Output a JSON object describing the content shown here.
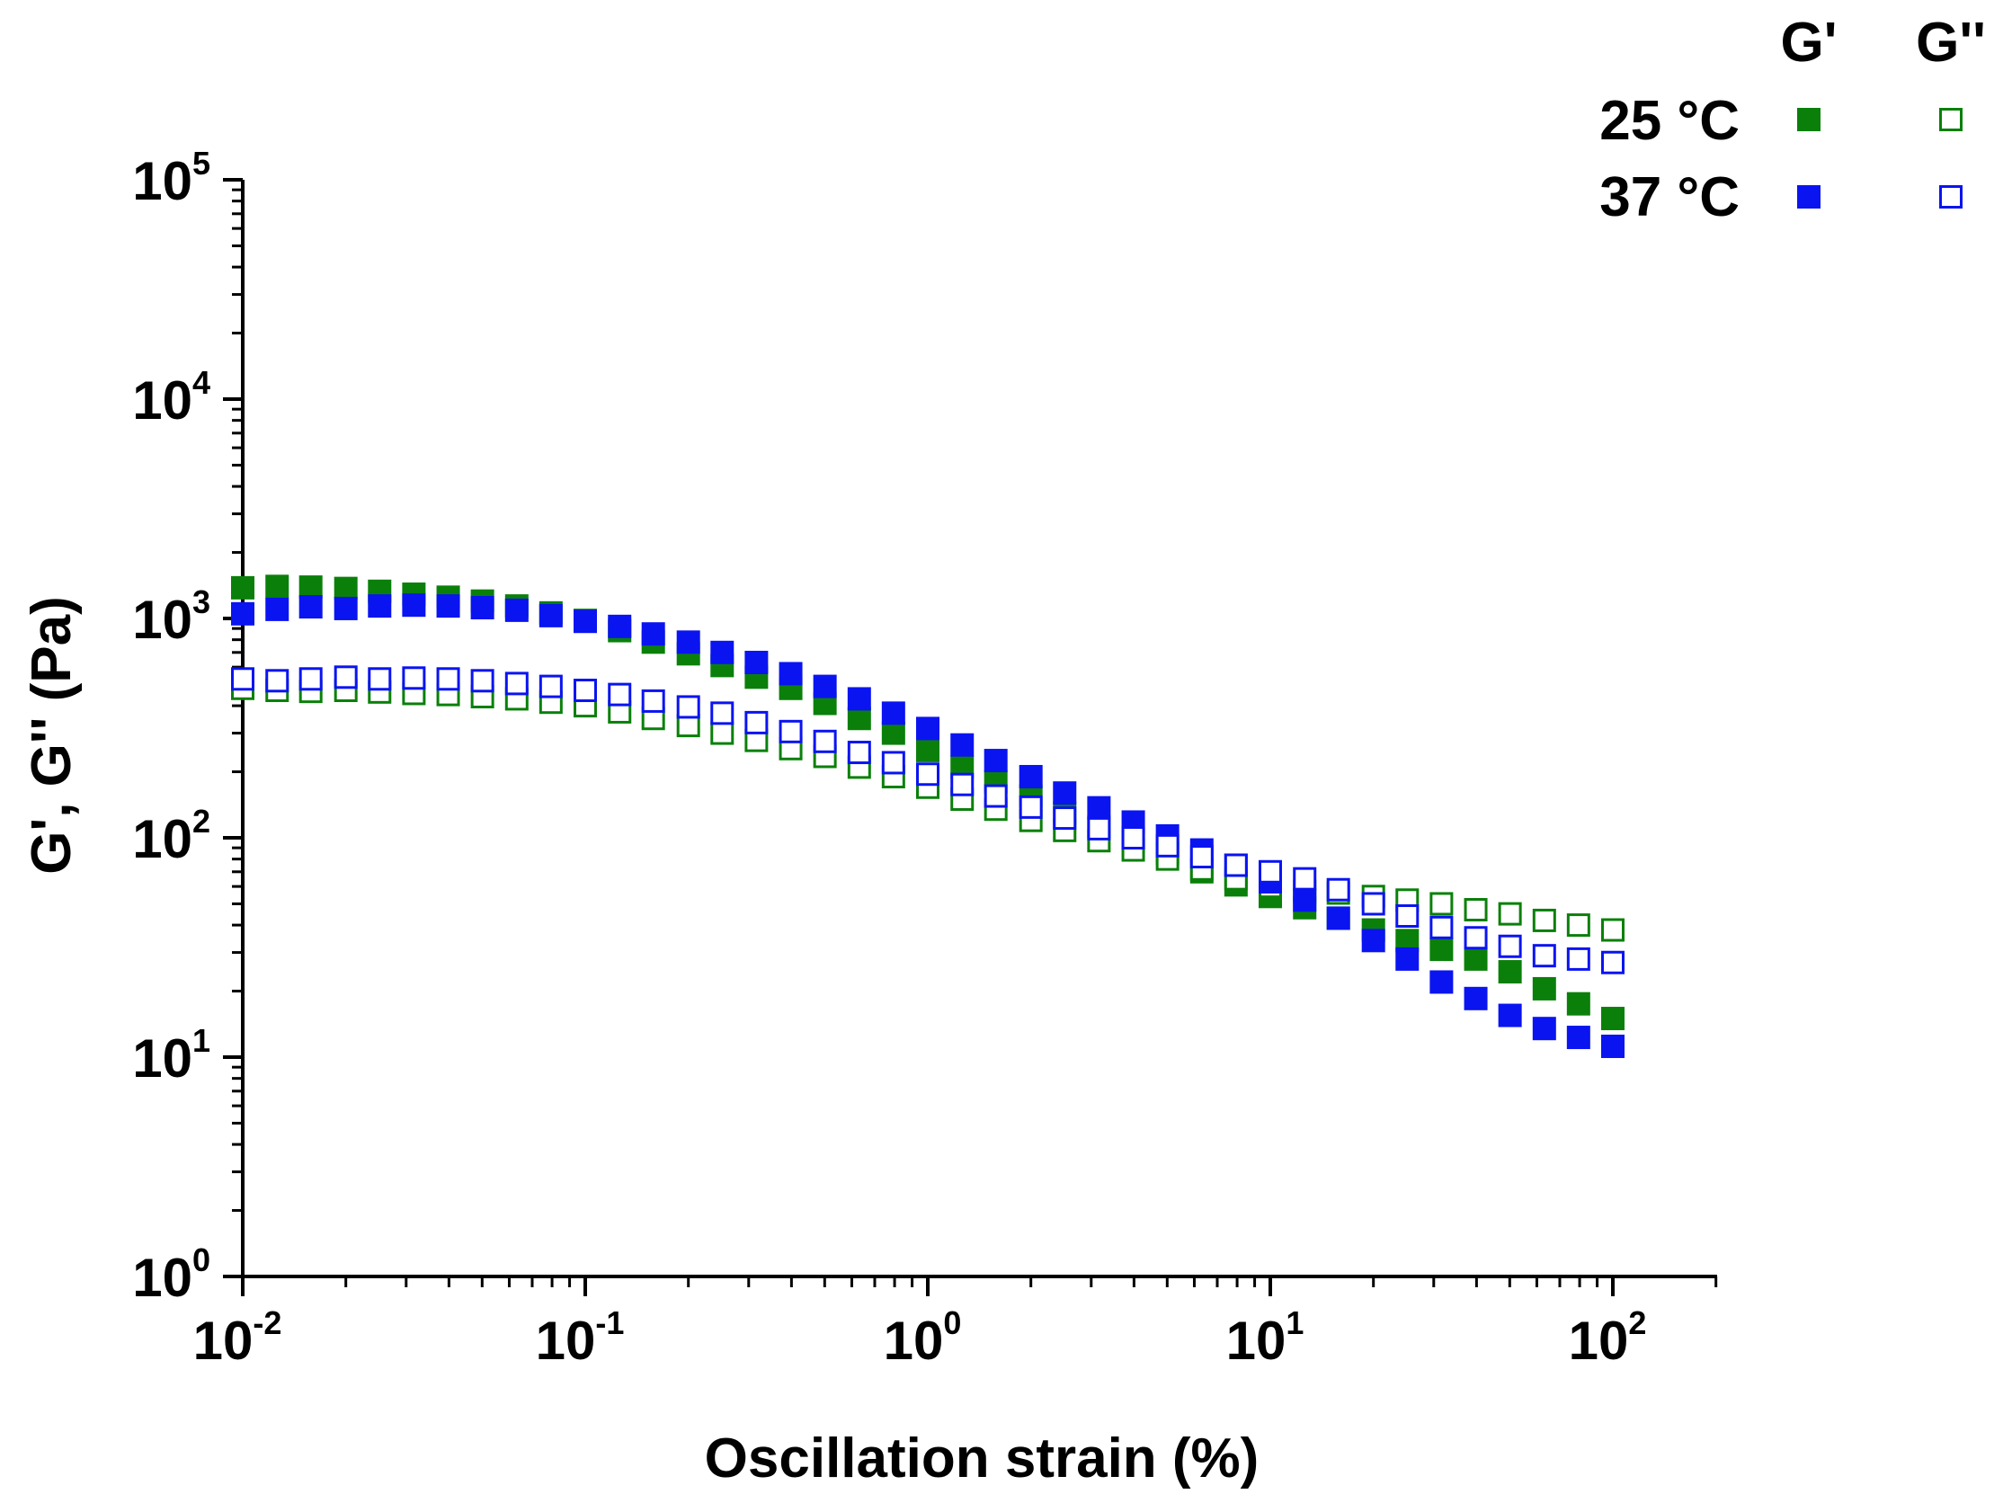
{
  "chart_data": {
    "type": "scatter",
    "title": "",
    "xlabel": "Oscillation strain (%)",
    "ylabel": "G', G'' (Pa)",
    "xscale": "log",
    "yscale": "log",
    "xlim": [
      0.01,
      200
    ],
    "ylim": [
      1,
      100000
    ],
    "x_ticks": [
      {
        "base": "10",
        "exp": "-2",
        "value": 0.01
      },
      {
        "base": "10",
        "exp": "-1",
        "value": 0.1
      },
      {
        "base": "10",
        "exp": "0",
        "value": 1
      },
      {
        "base": "10",
        "exp": "1",
        "value": 10
      },
      {
        "base": "10",
        "exp": "2",
        "value": 100
      }
    ],
    "y_ticks": [
      {
        "base": "10",
        "exp": "0",
        "value": 1
      },
      {
        "base": "10",
        "exp": "1",
        "value": 10
      },
      {
        "base": "10",
        "exp": "2",
        "value": 100
      },
      {
        "base": "10",
        "exp": "3",
        "value": 1000
      },
      {
        "base": "10",
        "exp": "4",
        "value": 10000
      },
      {
        "base": "10",
        "exp": "5",
        "value": 100000
      }
    ],
    "grid": false,
    "legend": {
      "placement": "top-right",
      "columns": [
        "G'",
        "G''"
      ],
      "rows": [
        {
          "label": "25 °C",
          "color": "#0a800a"
        },
        {
          "label": "37 °C",
          "color": "#0a14f0"
        }
      ]
    },
    "x": [
      0.01,
      0.0126,
      0.0158,
      0.02,
      0.0251,
      0.0316,
      0.0398,
      0.0501,
      0.0631,
      0.0794,
      0.1,
      0.126,
      0.158,
      0.2,
      0.251,
      0.316,
      0.398,
      0.501,
      0.631,
      0.794,
      1.0,
      1.26,
      1.58,
      2.0,
      2.51,
      3.16,
      3.98,
      5.01,
      6.31,
      7.94,
      10.0,
      12.6,
      15.8,
      20.0,
      25.1,
      31.6,
      39.8,
      50.1,
      63.1,
      79.4,
      100.0
    ],
    "series": [
      {
        "name": "25 °C G'",
        "color": "#0a800a",
        "filled": true,
        "values": [
          1380,
          1400,
          1390,
          1370,
          1330,
          1290,
          1250,
          1200,
          1140,
          1060,
          980,
          880,
          780,
          690,
          610,
          540,
          480,
          410,
          350,
          300,
          250,
          210,
          180,
          155,
          130,
          112,
          98,
          85,
          70,
          61,
          54,
          48,
          43,
          38,
          34,
          31,
          28,
          24.5,
          20.5,
          17.5,
          15
        ]
      },
      {
        "name": "25 °C G''",
        "color": "#0a800a",
        "filled": false,
        "values": [
          480,
          470,
          465,
          470,
          462,
          455,
          450,
          440,
          430,
          415,
          400,
          375,
          350,
          325,
          300,
          278,
          255,
          235,
          210,
          190,
          170,
          150,
          135,
          120,
          108,
          97,
          88,
          80,
          72,
          65,
          60,
          57,
          56,
          54,
          52,
          50,
          47,
          45,
          42,
          40,
          38
        ]
      },
      {
        "name": "37 °C G'",
        "color": "#0a14f0",
        "filled": true,
        "values": [
          1050,
          1100,
          1130,
          1110,
          1140,
          1150,
          1140,
          1120,
          1090,
          1030,
          970,
          920,
          850,
          780,
          700,
          630,
          560,
          490,
          430,
          370,
          315,
          265,
          225,
          190,
          160,
          137,
          118,
          102,
          88,
          75,
          63,
          52,
          43,
          34,
          28,
          22,
          18.5,
          15.5,
          13.5,
          12.3,
          11.2
        ]
      },
      {
        "name": "37 °C G''",
        "color": "#0a14f0",
        "filled": false,
        "values": [
          530,
          520,
          530,
          540,
          530,
          535,
          530,
          520,
          505,
          490,
          470,
          450,
          420,
          395,
          370,
          335,
          305,
          275,
          245,
          220,
          195,
          175,
          155,
          138,
          123,
          110,
          100,
          92,
          82,
          75,
          70,
          65,
          58,
          50,
          44,
          39,
          35,
          32,
          29,
          28,
          27
        ]
      }
    ]
  }
}
